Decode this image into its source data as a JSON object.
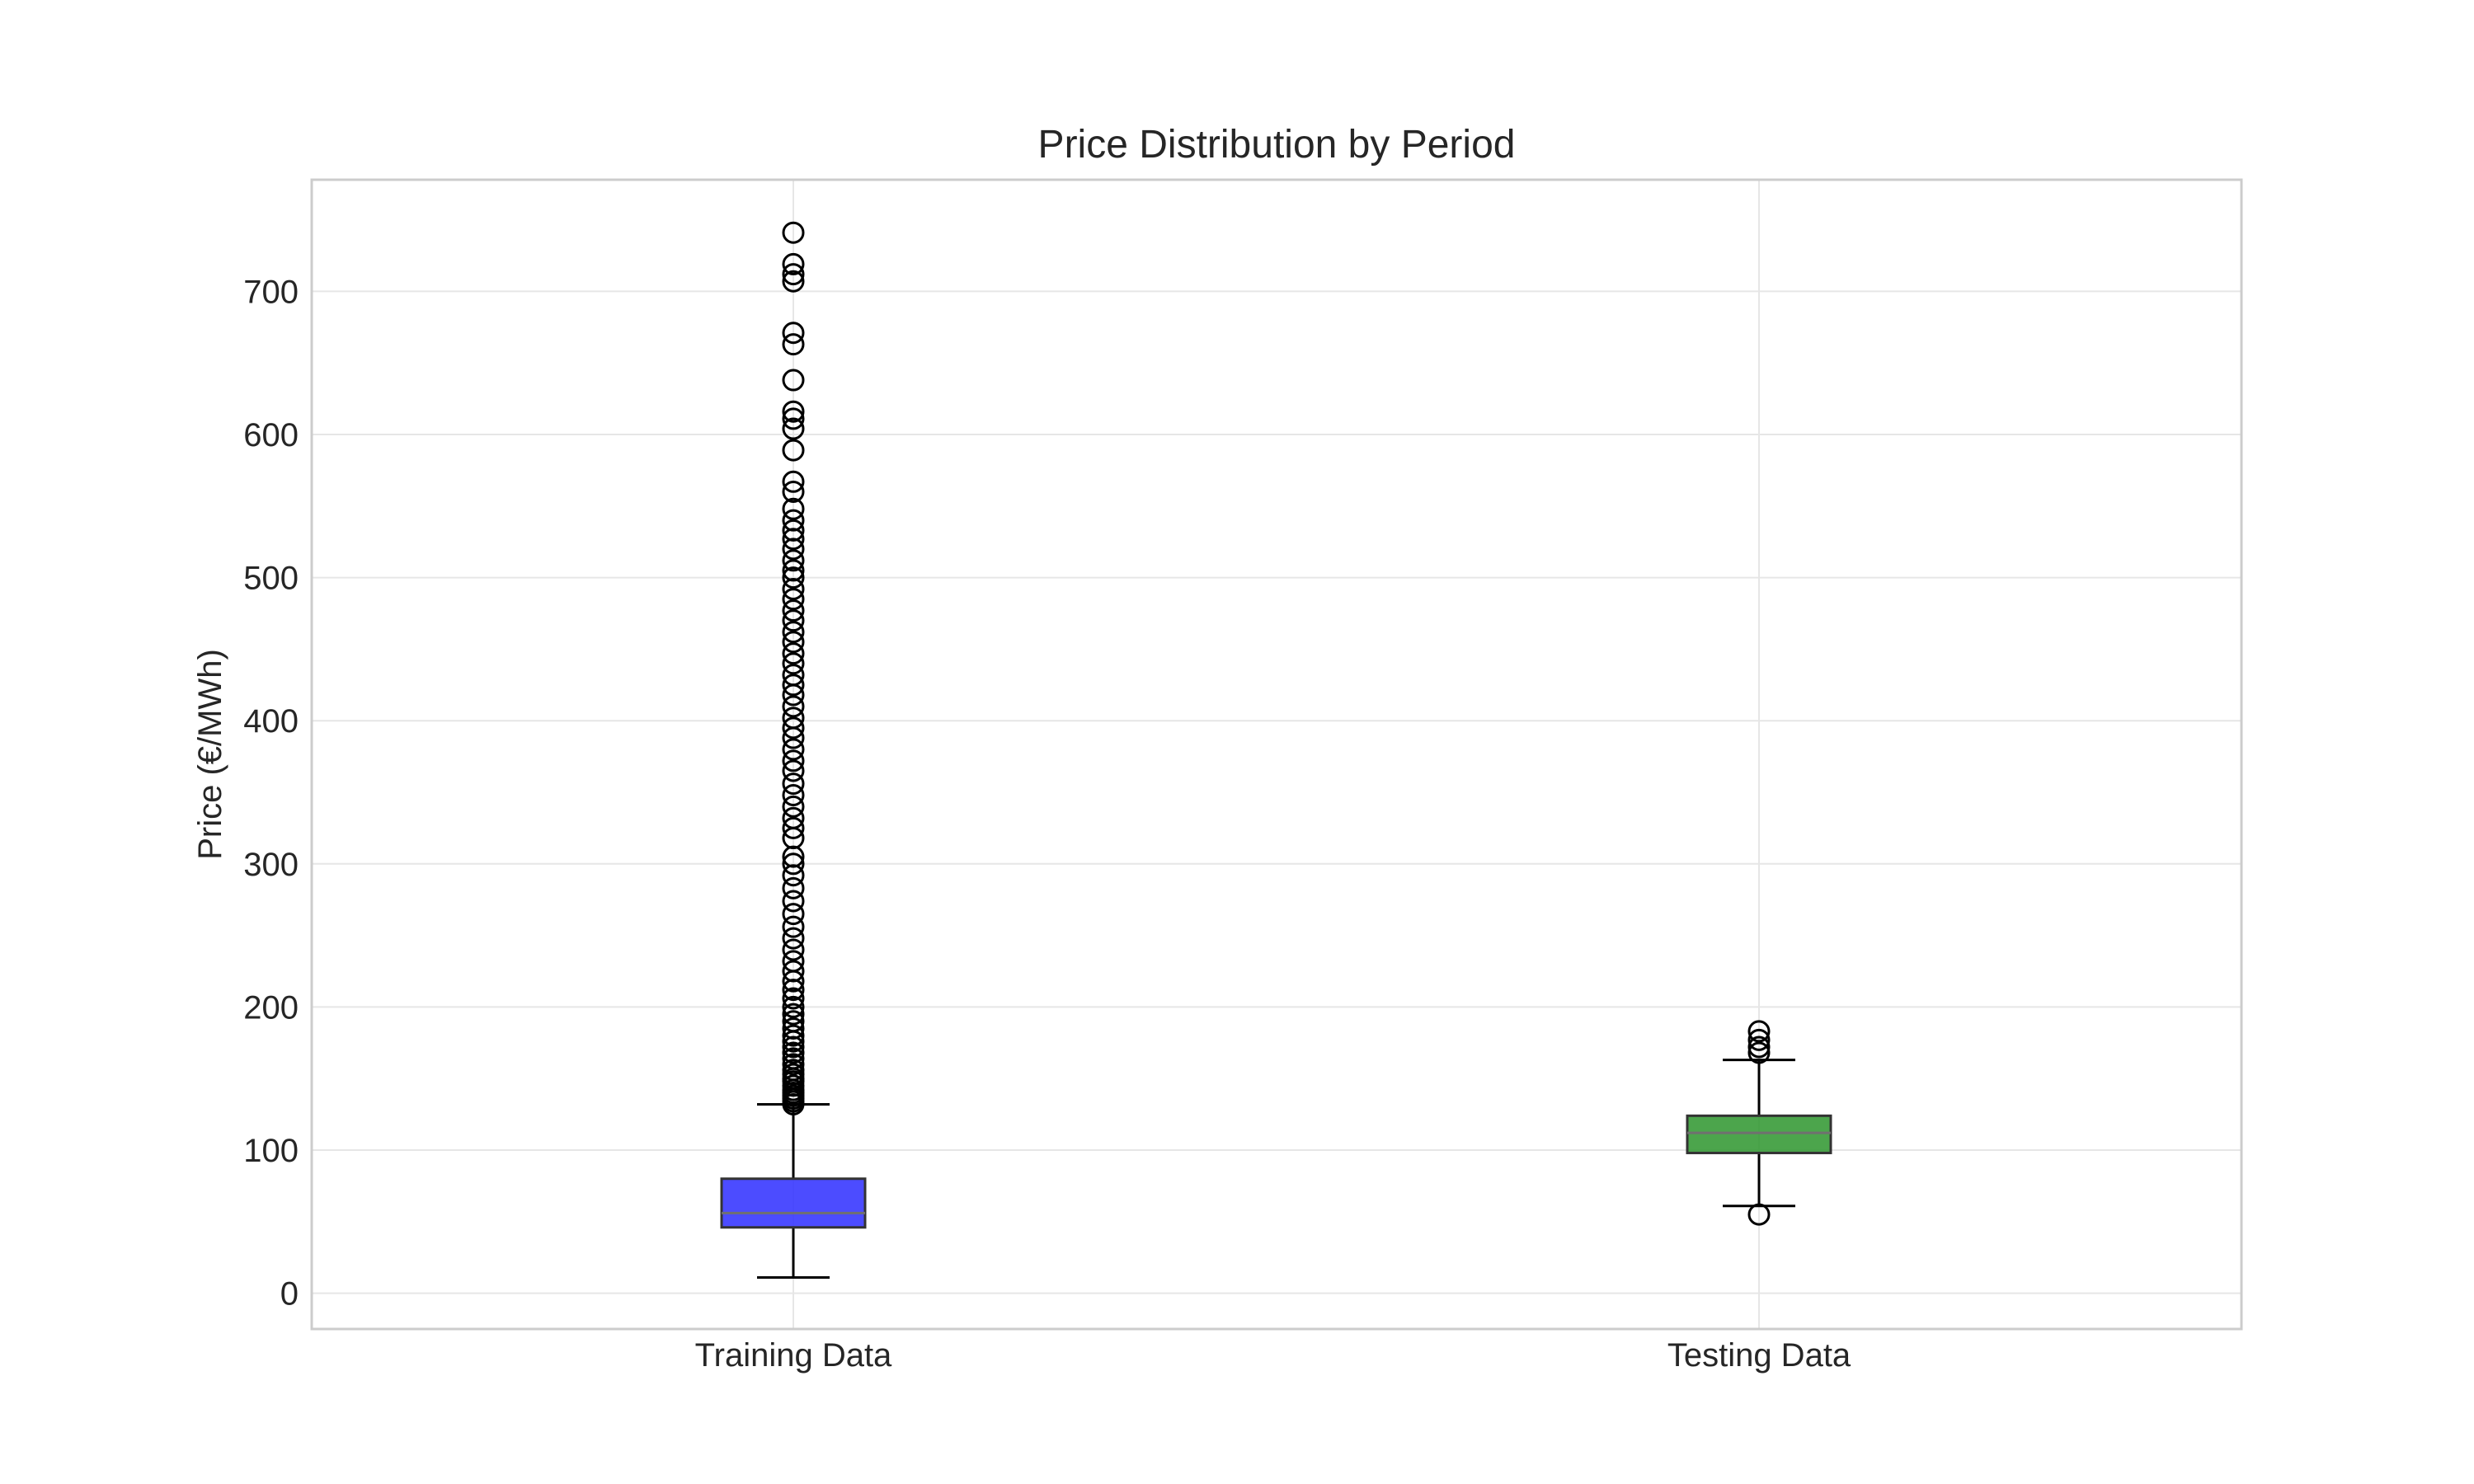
{
  "chart_data": {
    "type": "box",
    "title": "Price Distribution by Period",
    "xlabel": "",
    "ylabel": "Price (€/MWh)",
    "ylim": [
      -25,
      778
    ],
    "yticks": [
      0,
      100,
      200,
      300,
      400,
      500,
      600,
      700
    ],
    "grid": true,
    "categories": [
      "Training Data",
      "Testing Data"
    ],
    "boxes": [
      {
        "category": "Training Data",
        "color": "#3333ff",
        "whisker_low": 11,
        "q1": 46,
        "median": 56,
        "q3": 80,
        "whisker_high": 132,
        "outliers": [
          132,
          134,
          136,
          138,
          140,
          142,
          145,
          148,
          150,
          153,
          156,
          160,
          164,
          168,
          172,
          176,
          180,
          185,
          190,
          195,
          200,
          206,
          212,
          218,
          225,
          232,
          240,
          248,
          256,
          265,
          274,
          283,
          292,
          300,
          305,
          318,
          325,
          332,
          340,
          348,
          356,
          365,
          372,
          380,
          388,
          395,
          402,
          410,
          418,
          425,
          432,
          440,
          447,
          455,
          462,
          470,
          477,
          485,
          492,
          500,
          505,
          512,
          520,
          527,
          533,
          540,
          548,
          560,
          567,
          589,
          604,
          611,
          616,
          638,
          663,
          671,
          707,
          712,
          719,
          741
        ]
      },
      {
        "category": "Testing Data",
        "color": "#339933",
        "whisker_low": 61,
        "q1": 98,
        "median": 112,
        "q3": 124,
        "whisker_high": 163,
        "outliers": [
          55,
          168,
          172,
          177,
          183
        ]
      }
    ]
  }
}
